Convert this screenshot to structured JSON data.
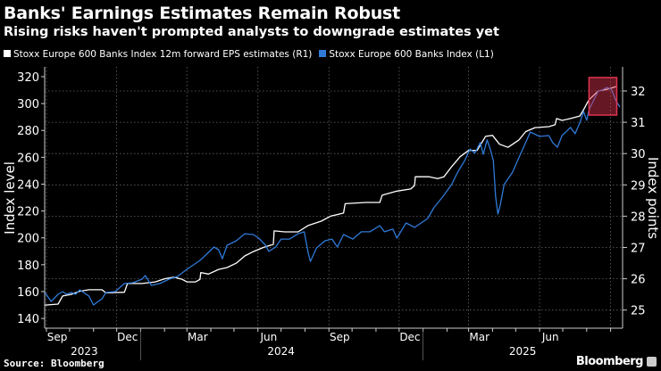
{
  "header": {
    "title": "Banks' Earnings Estimates Remain Robust",
    "subtitle": "Rising risks haven't prompted analysts to downgrade estimates yet"
  },
  "footer": {
    "source": "Source: Bloomberg",
    "brand": "Bloomberg"
  },
  "chart_data": {
    "type": "line",
    "title": "Banks' Earnings Estimates Remain Robust",
    "subtitle": "Rising risks haven't prompted analysts to downgrade estimates yet",
    "ylabel_left": "Index level",
    "ylabel_right": "Index points",
    "ylim_left": [
      140,
      320
    ],
    "ylim_right": [
      25,
      32
    ],
    "yticks_left": [
      "140",
      "160",
      "180",
      "200",
      "220",
      "240",
      "260",
      "280",
      "300",
      "320"
    ],
    "yticks_right": [
      "25",
      "26",
      "27",
      "28",
      "29",
      "30",
      "31",
      "32"
    ],
    "xticks": [
      {
        "label": "Sep",
        "date": "2023-09-15"
      },
      {
        "label": "Dec",
        "date": "2023-12-15"
      },
      {
        "label": "Mar",
        "date": "2024-03-15"
      },
      {
        "label": "Jun",
        "date": "2024-06-15"
      },
      {
        "label": "Sep",
        "date": "2024-09-15"
      },
      {
        "label": "Dec",
        "date": "2024-12-15"
      },
      {
        "label": "Mar",
        "date": "2025-03-15"
      },
      {
        "label": "Jun",
        "date": "2025-06-15"
      }
    ],
    "years": [
      {
        "label": "2023",
        "date": "2023-10-20"
      },
      {
        "label": "2024",
        "date": "2024-07-01"
      },
      {
        "label": "2025",
        "date": "2025-05-10"
      }
    ],
    "grid": true,
    "legend_placement": "top-left",
    "highlight": {
      "start": "2025-08-04",
      "end": "2025-09-09",
      "right_range": [
        31.23,
        32.43
      ],
      "color": "#e0334f"
    },
    "series": [
      {
        "name": "Stoxx Europe 600 Banks Index 12m forward EPS estimates (R1)",
        "axis": "right",
        "color": "#ffffff",
        "dates": [
          "2023-08-30",
          "2023-09-16",
          "2023-09-22",
          "2023-10-03",
          "2023-10-14",
          "2023-10-26",
          "2023-11-12",
          "2023-11-17",
          "2023-12-11",
          "2023-12-15",
          "2023-12-22",
          "2024-01-03",
          "2024-01-20",
          "2024-02-01",
          "2024-02-13",
          "2024-02-24",
          "2024-03-01",
          "2024-03-12",
          "2024-03-18",
          "2024-03-19",
          "2024-03-29",
          "2024-04-11",
          "2024-04-22",
          "2024-05-04",
          "2024-05-15",
          "2024-05-26",
          "2024-06-08",
          "2024-06-21",
          "2024-06-22",
          "2024-07-06",
          "2024-07-23",
          "2024-08-05",
          "2024-08-22",
          "2024-09-03",
          "2024-09-20",
          "2024-09-22",
          "2024-10-19",
          "2024-11-06",
          "2024-11-09",
          "2024-11-28",
          "2024-12-16",
          "2024-12-21",
          "2024-12-22",
          "2025-01-09",
          "2025-01-20",
          "2025-01-28",
          "2025-02-07",
          "2025-02-18",
          "2025-03-01",
          "2025-03-12",
          "2025-03-23",
          "2025-04-01",
          "2025-04-10",
          "2025-04-21",
          "2025-05-05",
          "2025-05-14",
          "2025-05-26",
          "2025-06-13",
          "2025-06-21",
          "2025-06-23",
          "2025-06-30",
          "2025-07-11",
          "2025-07-23",
          "2025-07-28",
          "2025-08-04",
          "2025-08-16",
          "2025-08-27",
          "2025-09-08"
        ],
        "values": [
          25.16,
          25.19,
          25.45,
          25.5,
          25.6,
          25.65,
          25.65,
          25.55,
          25.57,
          25.85,
          25.85,
          25.85,
          25.9,
          26.0,
          26.05,
          25.98,
          25.9,
          25.9,
          25.98,
          26.2,
          26.15,
          26.3,
          26.36,
          26.5,
          26.73,
          26.87,
          27.0,
          27.1,
          27.53,
          27.5,
          27.5,
          27.7,
          27.84,
          28.0,
          28.1,
          28.4,
          28.44,
          28.44,
          28.67,
          28.8,
          28.87,
          28.98,
          29.26,
          29.26,
          29.2,
          29.26,
          29.58,
          29.9,
          30.1,
          30.1,
          30.55,
          30.58,
          30.3,
          30.2,
          30.43,
          30.7,
          30.83,
          30.86,
          30.92,
          31.12,
          31.06,
          31.12,
          31.2,
          31.4,
          31.72,
          32.0,
          32.05,
          32.14
        ]
      },
      {
        "name": "Stoxx Europe 600 Banks Index (L1)",
        "axis": "left",
        "color": "#2f7ad8",
        "dates": [
          "2023-08-30",
          "2023-09-07",
          "2023-09-16",
          "2023-09-22",
          "2023-09-27",
          "2023-10-03",
          "2023-10-09",
          "2023-10-14",
          "2023-10-26",
          "2023-11-01",
          "2023-11-07",
          "2023-11-12",
          "2023-11-17",
          "2023-11-29",
          "2023-12-11",
          "2023-12-22",
          "2024-01-03",
          "2024-01-07",
          "2024-01-15",
          "2024-01-26",
          "2024-02-07",
          "2024-02-18",
          "2024-03-01",
          "2024-03-18",
          "2024-03-29",
          "2024-04-05",
          "2024-04-11",
          "2024-04-16",
          "2024-04-22",
          "2024-05-04",
          "2024-05-15",
          "2024-05-26",
          "2024-06-02",
          "2024-06-11",
          "2024-06-15",
          "2024-06-24",
          "2024-07-01",
          "2024-07-12",
          "2024-07-23",
          "2024-07-31",
          "2024-08-05",
          "2024-08-08",
          "2024-08-16",
          "2024-08-27",
          "2024-09-05",
          "2024-09-12",
          "2024-09-20",
          "2024-10-02",
          "2024-10-13",
          "2024-10-24",
          "2024-11-06",
          "2024-11-12",
          "2024-11-23",
          "2024-11-28",
          "2024-12-10",
          "2024-12-21",
          "2025-01-07",
          "2025-01-15",
          "2025-01-27",
          "2025-02-07",
          "2025-02-15",
          "2025-02-24",
          "2025-03-03",
          "2025-03-09",
          "2025-03-16",
          "2025-03-20",
          "2025-03-25",
          "2025-03-29",
          "2025-04-02",
          "2025-04-05",
          "2025-04-08",
          "2025-04-11",
          "2025-04-16",
          "2025-04-27",
          "2025-05-05",
          "2025-05-14",
          "2025-05-20",
          "2025-06-01",
          "2025-06-13",
          "2025-06-18",
          "2025-06-24",
          "2025-06-30",
          "2025-07-11",
          "2025-07-17",
          "2025-07-23",
          "2025-07-28",
          "2025-08-01",
          "2025-08-04",
          "2025-08-16",
          "2025-08-21",
          "2025-08-27",
          "2025-09-02",
          "2025-09-08",
          "2025-09-13"
        ],
        "values": [
          159.3,
          152.7,
          158,
          160,
          158,
          159.3,
          158,
          161.3,
          156.7,
          150,
          152.7,
          154.6,
          159.3,
          160,
          166,
          166.6,
          169.3,
          172,
          164.6,
          166,
          169.3,
          171.3,
          176.6,
          183.2,
          189.2,
          193.2,
          191.2,
          184.5,
          194.5,
          197.8,
          203.1,
          202.5,
          199.8,
          194.5,
          189.9,
          193.2,
          199.1,
          199.1,
          203.1,
          204.5,
          189.2,
          182.5,
          192.5,
          197.8,
          199.1,
          193.2,
          202.5,
          199.1,
          204.5,
          204.5,
          209.1,
          204.5,
          206.5,
          199.8,
          211.1,
          207.8,
          214.4,
          222.4,
          231,
          239.7,
          249,
          257.6,
          266.2,
          263,
          270.9,
          262.2,
          272.9,
          266.2,
          257.6,
          231,
          217.7,
          224.4,
          239.7,
          249,
          259.6,
          270.9,
          278.8,
          275.5,
          276.2,
          270.9,
          267.5,
          276.2,
          282.2,
          277.5,
          285.5,
          294.1,
          287.5,
          295.4,
          309.4,
          310,
          312,
          310.7,
          302,
          297.4
        ]
      }
    ]
  }
}
